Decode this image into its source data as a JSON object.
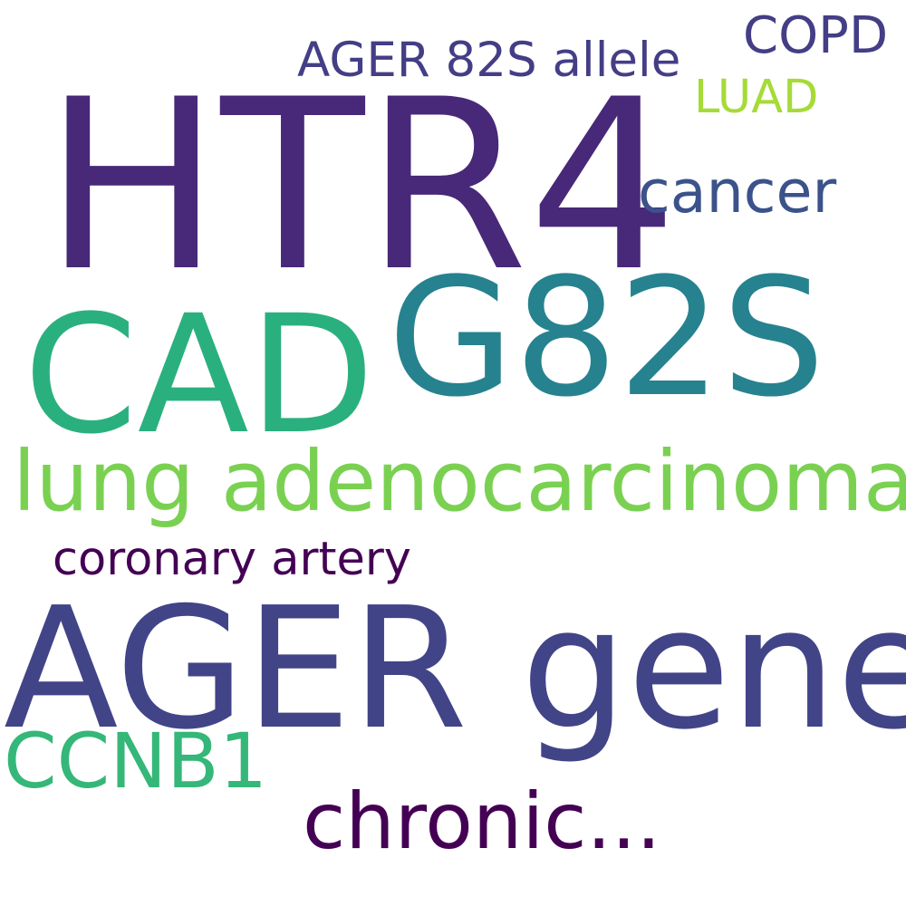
{
  "words": [
    {
      "text": "HTR4",
      "color": "#482878"
    },
    {
      "text": "G82S",
      "color": "#26828e"
    },
    {
      "text": "CAD",
      "color": "#2ab07f"
    },
    {
      "text": "AGER gene",
      "color": "#414487"
    },
    {
      "text": "lung adenocarcinoma",
      "color": "#7ad151"
    },
    {
      "text": "CCNB1",
      "color": "#35b779"
    },
    {
      "text": "chronic...",
      "color": "#440154"
    },
    {
      "text": "cancer",
      "color": "#3b528b"
    },
    {
      "text": "coronary artery",
      "color": "#440154"
    },
    {
      "text": "AGER 82S allele",
      "color": "#433e85"
    },
    {
      "text": "COPD",
      "color": "#433e85"
    },
    {
      "text": "LUAD",
      "color": "#a5db36"
    }
  ]
}
